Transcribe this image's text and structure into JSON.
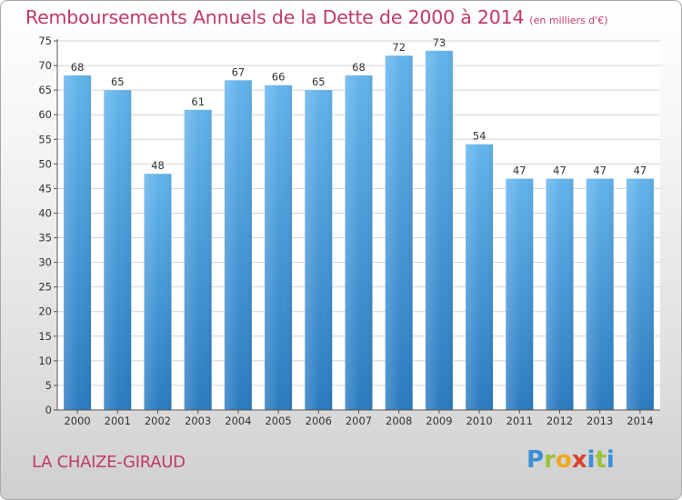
{
  "chart_data": {
    "type": "bar",
    "title": "Remboursements Annuels de la Dette de 2000 à 2014",
    "unit_label": "(en milliers d'€)",
    "categories": [
      "2000",
      "2001",
      "2002",
      "2003",
      "2004",
      "2005",
      "2006",
      "2007",
      "2008",
      "2009",
      "2010",
      "2011",
      "2012",
      "2013",
      "2014"
    ],
    "values": [
      68,
      65,
      48,
      61,
      67,
      66,
      65,
      68,
      72,
      73,
      54,
      47,
      47,
      47,
      47
    ],
    "ylim": [
      0,
      75
    ],
    "yticks": [
      0,
      5,
      10,
      15,
      20,
      25,
      30,
      35,
      40,
      45,
      50,
      55,
      60,
      65,
      70,
      75
    ],
    "xlabel": "",
    "ylabel": "",
    "grid": true,
    "legend": "none"
  },
  "commune": "LA CHAIZE-GIRAUD",
  "logo": {
    "chars": [
      "P",
      "r",
      "o",
      "x",
      "i",
      "t",
      "i"
    ]
  },
  "colors": {
    "bar_light": "#63b4ec",
    "bar_dark": "#2b7bc0",
    "title": "#c0396a",
    "grid": "#d4d4d4"
  }
}
